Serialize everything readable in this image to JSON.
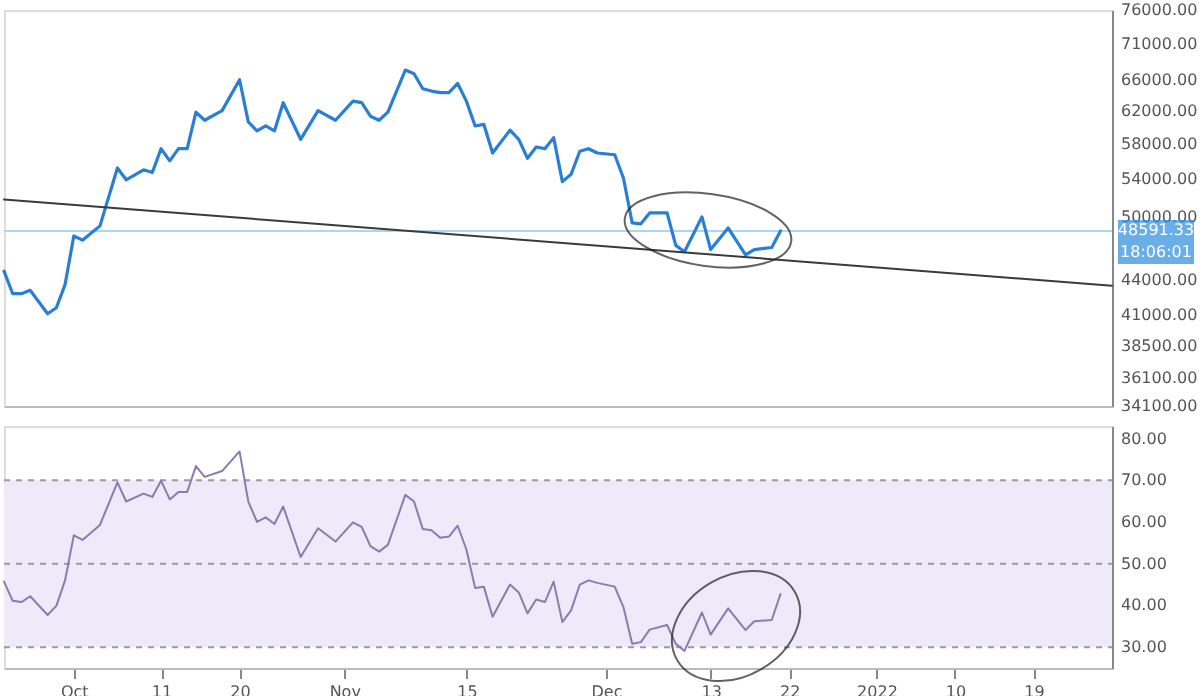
{
  "chart_data": [
    {
      "type": "line",
      "log": "y",
      "tick_labels": "y",
      "x": [
        "2021-09-23",
        "2021-09-24",
        "2021-09-25",
        "2021-09-26",
        "2021-09-28",
        "2021-09-29",
        "2021-09-30",
        "2021-10-01",
        "2021-10-02",
        "2021-10-04",
        "2021-10-06",
        "2021-10-07",
        "2021-10-09",
        "2021-10-10",
        "2021-10-11",
        "2021-10-12",
        "2021-10-13",
        "2021-10-14",
        "2021-10-15",
        "2021-10-16",
        "2021-10-18",
        "2021-10-20",
        "2021-10-21",
        "2021-10-22",
        "2021-10-23",
        "2021-10-24",
        "2021-10-25",
        "2021-10-27",
        "2021-10-29",
        "2021-10-31",
        "2021-11-02",
        "2021-11-03",
        "2021-11-04",
        "2021-11-05",
        "2021-11-06",
        "2021-11-08",
        "2021-11-09",
        "2021-11-10",
        "2021-11-11",
        "2021-11-12",
        "2021-11-13",
        "2021-11-14",
        "2021-11-15",
        "2021-11-16",
        "2021-11-17",
        "2021-11-18",
        "2021-11-20",
        "2021-11-21",
        "2021-11-22",
        "2021-11-23",
        "2021-11-24",
        "2021-11-25",
        "2021-11-26",
        "2021-11-27",
        "2021-11-28",
        "2021-11-29",
        "2021-11-30",
        "2021-12-02",
        "2021-12-03",
        "2021-12-04",
        "2021-12-05",
        "2021-12-06",
        "2021-12-08",
        "2021-12-09",
        "2021-12-10",
        "2021-12-12",
        "2021-12-13",
        "2021-12-15",
        "2021-12-17",
        "2021-12-18",
        "2021-12-20",
        "2021-12-21"
      ],
      "series": [
        {
          "color": "#2a7fd4",
          "values": [
            44800,
            42800,
            42800,
            43100,
            41100,
            41600,
            43600,
            48100,
            47700,
            49100,
            55200,
            53900,
            55000,
            54700,
            57400,
            56000,
            57400,
            57400,
            61800,
            60800,
            62000,
            66000,
            60600,
            59500,
            60100,
            59500,
            63000,
            58500,
            62000,
            60800,
            63200,
            63000,
            61300,
            60800,
            61800,
            67300,
            66800,
            64800,
            64500,
            64300,
            64300,
            65500,
            63200,
            60100,
            60300,
            56900,
            59600,
            58500,
            56300,
            57600,
            57400,
            58700,
            53700,
            54500,
            57100,
            57400,
            56900,
            56700,
            54100,
            49400,
            49300,
            50400,
            50400,
            47200,
            46600,
            50000,
            46800,
            48900,
            46300,
            46800,
            47000,
            48591.33
          ]
        },
        {
          "type": "line",
          "color": "#3a3a3a",
          "x": [
            "2021-09-23",
            "2022-01-28"
          ],
          "values": [
            51800,
            43500
          ]
        }
      ],
      "xlim": [
        "2021-09-23",
        "2022-01-28"
      ],
      "ylim": [
        34100,
        76000
      ],
      "yticks": [
        {
          "value": 34100,
          "label": "34100.00"
        },
        {
          "value": 36100,
          "label": "36100.00"
        },
        {
          "value": 38500,
          "label": "38500.00"
        },
        {
          "value": 41000,
          "label": "41000.00"
        },
        {
          "value": 44000,
          "label": "44000.00"
        },
        {
          "value": 50000,
          "label": "50000.00"
        },
        {
          "value": 54000,
          "label": "54000.00"
        },
        {
          "value": 58000,
          "label": "58000.00"
        },
        {
          "value": 62000,
          "label": "62000.00"
        },
        {
          "value": 66000,
          "label": "66000.00"
        },
        {
          "value": 71000,
          "label": "71000.00"
        },
        {
          "value": 76000,
          "label": "76000.00"
        }
      ],
      "ref_lines": [
        {
          "axis": "y",
          "value": 48591.33,
          "label": "48591.33",
          "color": "#a9d8f5"
        }
      ],
      "annotations": [
        "18:06:01"
      ]
    },
    {
      "type": "line",
      "x": [
        "2021-09-23",
        "2021-09-24",
        "2021-09-25",
        "2021-09-26",
        "2021-09-28",
        "2021-09-29",
        "2021-09-30",
        "2021-10-01",
        "2021-10-02",
        "2021-10-04",
        "2021-10-06",
        "2021-10-07",
        "2021-10-09",
        "2021-10-10",
        "2021-10-11",
        "2021-10-12",
        "2021-10-13",
        "2021-10-14",
        "2021-10-15",
        "2021-10-16",
        "2021-10-18",
        "2021-10-20",
        "2021-10-21",
        "2021-10-22",
        "2021-10-23",
        "2021-10-24",
        "2021-10-25",
        "2021-10-27",
        "2021-10-29",
        "2021-10-31",
        "2021-11-02",
        "2021-11-03",
        "2021-11-04",
        "2021-11-05",
        "2021-11-06",
        "2021-11-08",
        "2021-11-09",
        "2021-11-10",
        "2021-11-11",
        "2021-11-12",
        "2021-11-13",
        "2021-11-14",
        "2021-11-15",
        "2021-11-16",
        "2021-11-17",
        "2021-11-18",
        "2021-11-20",
        "2021-11-21",
        "2021-11-22",
        "2021-11-23",
        "2021-11-24",
        "2021-11-25",
        "2021-11-26",
        "2021-11-27",
        "2021-11-28",
        "2021-11-29",
        "2021-11-30",
        "2021-12-02",
        "2021-12-03",
        "2021-12-04",
        "2021-12-05",
        "2021-12-06",
        "2021-12-08",
        "2021-12-09",
        "2021-12-10",
        "2021-12-12",
        "2021-12-13",
        "2021-12-15",
        "2021-12-17",
        "2021-12-18",
        "2021-12-20",
        "2021-12-21"
      ],
      "series": [
        {
          "color": "#8a7bb0",
          "values": [
            45.7,
            41.1,
            40.8,
            42.2,
            37.7,
            39.9,
            46.0,
            56.8,
            55.7,
            59.3,
            69.5,
            64.9,
            66.8,
            66.0,
            69.9,
            65.4,
            67.2,
            67.2,
            73.4,
            70.8,
            72.2,
            76.9,
            64.9,
            60.0,
            61.1,
            59.5,
            63.7,
            51.6,
            58.5,
            55.3,
            59.9,
            58.8,
            54.2,
            52.9,
            54.5,
            66.5,
            64.9,
            58.3,
            58.0,
            56.2,
            56.5,
            59.1,
            53.4,
            44.2,
            44.5,
            37.3,
            45.0,
            43.1,
            38.1,
            41.4,
            40.8,
            45.7,
            36.0,
            38.8,
            45.0,
            46.0,
            45.4,
            44.5,
            39.6,
            30.8,
            31.2,
            34.2,
            35.3,
            30.8,
            29.1,
            38.3,
            33.0,
            39.3,
            34.1,
            36.2,
            36.5,
            42.7
          ]
        }
      ],
      "xlim": [
        "2021-09-23",
        "2022-01-28"
      ],
      "xticks": [
        {
          "value": "2021-10-01",
          "label": "Oct"
        },
        {
          "value": "2021-10-11",
          "label": "11"
        },
        {
          "value": "2021-10-20",
          "label": "20"
        },
        {
          "value": "2021-11-01",
          "label": "Nov"
        },
        {
          "value": "2021-11-15",
          "label": "15"
        },
        {
          "value": "2021-12-01",
          "label": "Dec"
        },
        {
          "value": "2021-12-13",
          "label": "13"
        },
        {
          "value": "2021-12-22",
          "label": "22"
        },
        {
          "value": "2022-01-01",
          "label": "2022"
        },
        {
          "value": "2022-01-10",
          "label": "10"
        },
        {
          "value": "2022-01-19",
          "label": "19"
        }
      ],
      "ylim": [
        25,
        83
      ],
      "yticks": [
        {
          "value": 30,
          "label": "30.00"
        },
        {
          "value": 40,
          "label": "40.00"
        },
        {
          "value": 50,
          "label": "50.00"
        },
        {
          "value": 60,
          "label": "60.00"
        },
        {
          "value": 70,
          "label": "70.00"
        },
        {
          "value": 80,
          "label": "80.00"
        }
      ],
      "bands": [
        {
          "axis": "y",
          "from": 30,
          "to": 70,
          "color": "#eeeafa"
        }
      ],
      "ref_lines": [
        {
          "axis": "y",
          "value": 70,
          "color": "#9a9a9a",
          "line_style": "dashed"
        },
        {
          "axis": "y",
          "value": 50,
          "color": "#9a9a9a",
          "line_style": "dashed"
        },
        {
          "axis": "y",
          "value": 30,
          "color": "#9a9a9a",
          "line_style": "dashed"
        }
      ]
    }
  ]
}
